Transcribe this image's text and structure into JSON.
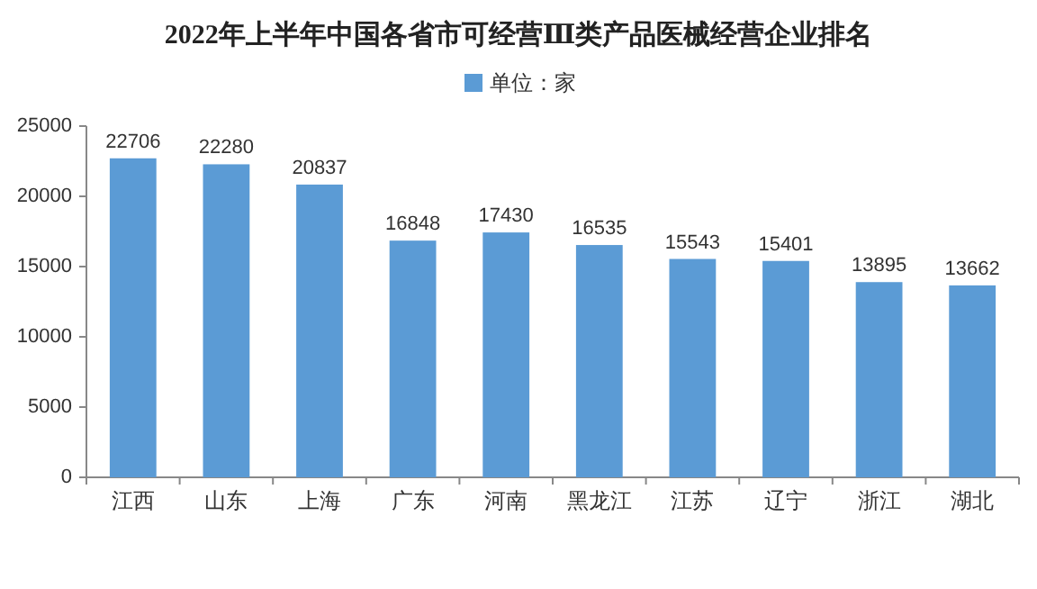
{
  "chart_data": {
    "type": "bar",
    "title": "2022年上半年中国各省市可经营Ⅲ类产品医械经营企业排名",
    "categories": [
      "江西",
      "山东",
      "上海",
      "广东",
      "河南",
      "黑龙江",
      "江苏",
      "辽宁",
      "浙江",
      "湖北"
    ],
    "series": [
      {
        "name": "单位：家",
        "color": "#5b9bd5",
        "values": [
          22706,
          22280,
          20837,
          16848,
          17430,
          16535,
          15543,
          15401,
          13895,
          13662
        ]
      }
    ],
    "ylim": [
      0,
      25000
    ],
    "yticks": [
      0,
      5000,
      10000,
      15000,
      20000,
      25000
    ],
    "data_labels": true,
    "legend": "top",
    "grid": false
  }
}
